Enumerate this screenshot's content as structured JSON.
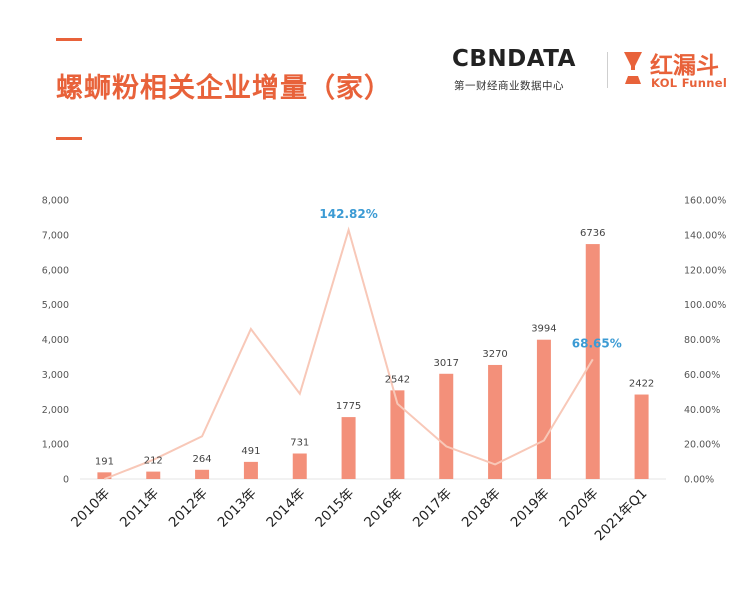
{
  "header": {
    "title": "螺蛳粉相关企业增量（家）"
  },
  "brand": {
    "cbn_main": "CBNDATA",
    "cbn_sub": "第一财经商业数据中心",
    "kol_cn": "红漏斗",
    "kol_en": "KOL Funnel"
  },
  "colors": {
    "bar": "#f3907a",
    "line": "#f8c8b8",
    "title": "#e8623a",
    "highlight": "#3c9bd4"
  },
  "chart_data": {
    "type": "bar",
    "categories": [
      "2010年",
      "2011年",
      "2012年",
      "2013年",
      "2014年",
      "2015年",
      "2016年",
      "2017年",
      "2018年",
      "2019年",
      "2020年",
      "2021年Q1"
    ],
    "series": [
      {
        "type": "bar",
        "axis": "left",
        "values": [
          191,
          212,
          264,
          491,
          731,
          1775,
          2542,
          3017,
          3270,
          3994,
          6736,
          2422
        ]
      },
      {
        "type": "line",
        "axis": "right",
        "values": [
          0,
          11,
          24.5,
          86,
          48.9,
          142.82,
          43.2,
          18.7,
          8.4,
          22.1,
          68.65,
          null
        ]
      }
    ],
    "yLeft": {
      "min": 0,
      "max": 8000,
      "step": 1000,
      "ticks": [
        "0",
        "1,000",
        "2,000",
        "3,000",
        "4,000",
        "5,000",
        "6,000",
        "7,000",
        "8,000"
      ]
    },
    "yRight": {
      "min": 0,
      "max": 160,
      "step": 20,
      "ticks": [
        "0.00%",
        "20.00%",
        "40.00%",
        "60.00%",
        "80.00%",
        "100.00%",
        "120.00%",
        "140.00%",
        "160.00%"
      ]
    },
    "annotations": [
      {
        "index": 5,
        "text": "142.82%"
      },
      {
        "index": 10,
        "text": "68.65%"
      }
    ],
    "grid": false,
    "legend": "none"
  }
}
